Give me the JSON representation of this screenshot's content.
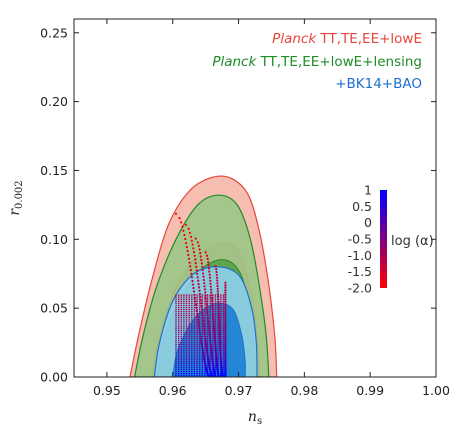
{
  "chart_data": {
    "type": "contour",
    "xlabel": "n",
    "xlabel_sub": "s",
    "ylabel": "r",
    "ylabel_sub": "0.002",
    "xlim": [
      0.945,
      1.0
    ],
    "ylim": [
      0.0,
      0.26
    ],
    "xticks": [
      "0.95",
      "0.96",
      "0.97",
      "0.98",
      "0.99",
      "1.00"
    ],
    "xtick_values": [
      0.95,
      0.96,
      0.97,
      0.98,
      0.99,
      1.0
    ],
    "yticks": [
      "0.00",
      "0.05",
      "0.10",
      "0.15",
      "0.20",
      "0.25"
    ],
    "ytick_values": [
      0.0,
      0.05,
      0.1,
      0.15,
      0.2,
      0.25
    ],
    "legend_position": "top-right",
    "legend": [
      {
        "prefix": "Planck",
        "text": " TT,TE,EE+lowE",
        "color": "#e8463a"
      },
      {
        "prefix": "Planck",
        "text": " TT,TE,EE+lowE+lensing",
        "color": "#1f8c2a"
      },
      {
        "prefix": "",
        "text": "+BK14+BAO",
        "color": "#1f6fd0"
      }
    ],
    "series": [
      {
        "name": "Planck TT,TE,EE+lowE",
        "color": "#e8463a",
        "fill_outer": "#f5b7a8",
        "fill_inner": "#ea8877",
        "outer": [
          [
            0.9535,
            0.0
          ],
          [
            0.9548,
            0.03
          ],
          [
            0.9568,
            0.07
          ],
          [
            0.9593,
            0.11
          ],
          [
            0.9625,
            0.135
          ],
          [
            0.966,
            0.145
          ],
          [
            0.969,
            0.144
          ],
          [
            0.9715,
            0.132
          ],
          [
            0.9732,
            0.105
          ],
          [
            0.9745,
            0.07
          ],
          [
            0.9755,
            0.03
          ],
          [
            0.9758,
            0.0
          ]
        ],
        "inner": [
          [
            0.9568,
            0.0
          ],
          [
            0.958,
            0.03
          ],
          [
            0.9605,
            0.065
          ],
          [
            0.9642,
            0.09
          ],
          [
            0.9678,
            0.097
          ],
          [
            0.9702,
            0.09
          ],
          [
            0.9718,
            0.065
          ],
          [
            0.9728,
            0.03
          ],
          [
            0.9732,
            0.0
          ]
        ]
      },
      {
        "name": "Planck TT,TE,EE+lowE+lensing",
        "color": "#1f8c2a",
        "fill_outer": "#9cc786",
        "fill_inner": "#5aa048",
        "outer": [
          [
            0.9542,
            0.0
          ],
          [
            0.9555,
            0.03
          ],
          [
            0.9575,
            0.065
          ],
          [
            0.9605,
            0.1
          ],
          [
            0.9638,
            0.125
          ],
          [
            0.967,
            0.132
          ],
          [
            0.9698,
            0.125
          ],
          [
            0.9718,
            0.1
          ],
          [
            0.9732,
            0.065
          ],
          [
            0.9742,
            0.03
          ],
          [
            0.9746,
            0.0
          ]
        ],
        "inner": [
          [
            0.9575,
            0.0
          ],
          [
            0.9588,
            0.03
          ],
          [
            0.9615,
            0.06
          ],
          [
            0.9648,
            0.08
          ],
          [
            0.968,
            0.085
          ],
          [
            0.9703,
            0.075
          ],
          [
            0.9717,
            0.05
          ],
          [
            0.9724,
            0.02
          ],
          [
            0.9726,
            0.0
          ]
        ]
      },
      {
        "name": "+BK14+BAO",
        "color": "#1f6fd0",
        "fill_outer": "#8ed0ee",
        "fill_inner": "#1a7fd4",
        "outer": [
          [
            0.9572,
            0.0
          ],
          [
            0.958,
            0.025
          ],
          [
            0.96,
            0.055
          ],
          [
            0.9632,
            0.075
          ],
          [
            0.967,
            0.08
          ],
          [
            0.9702,
            0.073
          ],
          [
            0.972,
            0.05
          ],
          [
            0.9727,
            0.025
          ],
          [
            0.9728,
            0.0
          ]
        ],
        "inner": [
          [
            0.96,
            0.0
          ],
          [
            0.9608,
            0.02
          ],
          [
            0.9632,
            0.042
          ],
          [
            0.9662,
            0.053
          ],
          [
            0.969,
            0.05
          ],
          [
            0.9704,
            0.032
          ],
          [
            0.971,
            0.012
          ],
          [
            0.971,
            0.0
          ]
        ]
      }
    ],
    "scatter": {
      "name": "log (α)",
      "n_min": [
        0.9605,
        0.962,
        0.9635,
        0.965,
        0.9665,
        0.968
      ],
      "n_max": [
        0.9655,
        0.966,
        0.9665,
        0.967,
        0.9675,
        0.968
      ],
      "r_top": [
        0.118,
        0.11,
        0.1,
        0.09,
        0.08,
        0.068
      ],
      "log_alpha": [
        -2.0,
        -1.5,
        -1.0,
        -0.5,
        0.0,
        0.5,
        1.0
      ],
      "r_at_log_alpha": [
        0.11,
        0.08,
        0.05,
        0.03,
        0.015,
        0.007,
        0.002
      ]
    },
    "colorbar": {
      "label": "log (α)",
      "ticks": [
        "1",
        "0.5",
        "0",
        "-0.5",
        "-1.0",
        "-1.5",
        "-2.0"
      ],
      "range": [
        -2.0,
        1.0
      ],
      "color_low": "#ff0000",
      "color_high": "#0000ff"
    }
  }
}
